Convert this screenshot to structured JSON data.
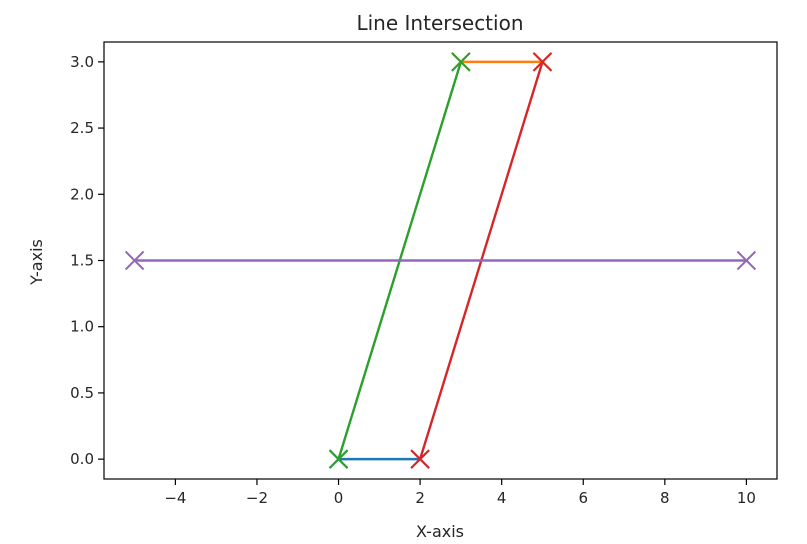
{
  "chart_data": {
    "type": "line",
    "title": "Line Intersection",
    "xlabel": "X-axis",
    "ylabel": "Y-axis",
    "xlim": [
      -5.75,
      10.75
    ],
    "ylim": [
      -0.15,
      3.15
    ],
    "xticks": [
      -4,
      -2,
      0,
      2,
      4,
      6,
      8,
      10
    ],
    "yticks": [
      0.0,
      0.5,
      1.0,
      1.5,
      2.0,
      2.5,
      3.0
    ],
    "xtick_labels": [
      "−4",
      "−2",
      "0",
      "2",
      "4",
      "6",
      "8",
      "10"
    ],
    "ytick_labels": [
      "0.0",
      "0.5",
      "1.0",
      "1.5",
      "2.0",
      "2.5",
      "3.0"
    ],
    "grid": false,
    "marker": "x",
    "series": [
      {
        "color": "#1f77b4",
        "points": [
          [
            0,
            0
          ],
          [
            2,
            0
          ]
        ]
      },
      {
        "color": "#ff7f0e",
        "points": [
          [
            3,
            3
          ],
          [
            5,
            3
          ]
        ]
      },
      {
        "color": "#2ca02c",
        "points": [
          [
            0,
            0
          ],
          [
            3,
            3
          ]
        ]
      },
      {
        "color": "#d62728",
        "points": [
          [
            2,
            0
          ],
          [
            5,
            3
          ]
        ]
      },
      {
        "color": "#9467bd",
        "points": [
          [
            -5,
            1.5
          ],
          [
            10,
            1.5
          ]
        ]
      }
    ]
  }
}
